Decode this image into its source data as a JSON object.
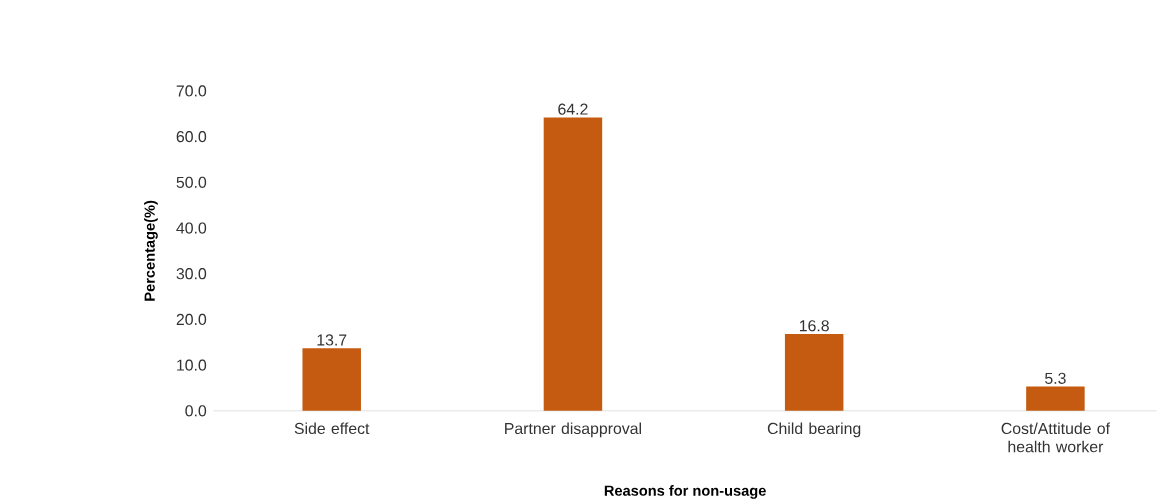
{
  "chart_data": {
    "type": "bar",
    "xlabel": "Reasons for non-usage",
    "ylabel": "Percentage(%)",
    "categories": [
      "Side effect",
      "Partner disapproval",
      "Child bearing",
      "Cost/Attitude of health worker"
    ],
    "values": [
      13.7,
      64.2,
      16.8,
      5.3
    ],
    "color": "#c55a11",
    "data_labels": true,
    "ylim": [
      0,
      70
    ],
    "yticks": [
      {
        "value": 0,
        "label": "0.0"
      },
      {
        "value": 10,
        "label": "10.0"
      },
      {
        "value": 20,
        "label": "20.0"
      },
      {
        "value": 30,
        "label": "30.0"
      },
      {
        "value": 40,
        "label": "40.0"
      },
      {
        "value": 50,
        "label": "50.0"
      },
      {
        "value": 60,
        "label": "60.0"
      },
      {
        "value": 70,
        "label": "70.0"
      }
    ],
    "grid": false
  }
}
